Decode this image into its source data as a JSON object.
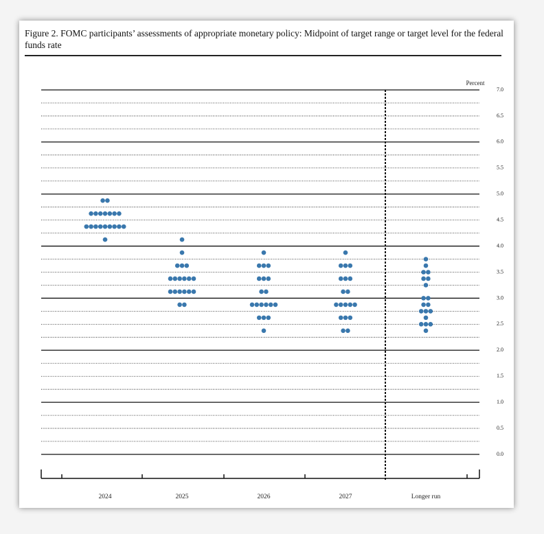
{
  "chart_data": {
    "type": "dot",
    "title": "Figure 2.  FOMC participants’ assessments of appropriate monetary policy: Midpoint of target range or target level for the federal funds rate",
    "y_label": "Percent",
    "color": "#3a78ad",
    "categories": [
      "2024",
      "2025",
      "2026",
      "2027",
      "Longer run"
    ],
    "dots": [
      [
        {
          "value": 4.875,
          "count": 2
        },
        {
          "value": 4.625,
          "count": 7
        },
        {
          "value": 4.375,
          "count": 9
        },
        {
          "value": 4.125,
          "count": 1
        }
      ],
      [
        {
          "value": 4.125,
          "count": 1
        },
        {
          "value": 3.875,
          "count": 1
        },
        {
          "value": 3.625,
          "count": 3
        },
        {
          "value": 3.375,
          "count": 6
        },
        {
          "value": 3.125,
          "count": 6
        },
        {
          "value": 2.875,
          "count": 2
        }
      ],
      [
        {
          "value": 3.875,
          "count": 1
        },
        {
          "value": 3.625,
          "count": 3
        },
        {
          "value": 3.375,
          "count": 3
        },
        {
          "value": 3.125,
          "count": 2
        },
        {
          "value": 2.875,
          "count": 6
        },
        {
          "value": 2.625,
          "count": 3
        },
        {
          "value": 2.375,
          "count": 1
        }
      ],
      [
        {
          "value": 3.875,
          "count": 1
        },
        {
          "value": 3.625,
          "count": 3
        },
        {
          "value": 3.375,
          "count": 3
        },
        {
          "value": 3.125,
          "count": 2
        },
        {
          "value": 2.875,
          "count": 5
        },
        {
          "value": 2.625,
          "count": 3
        },
        {
          "value": 2.375,
          "count": 2
        }
      ],
      [
        {
          "value": 3.75,
          "count": 1
        },
        {
          "value": 3.625,
          "count": 1
        },
        {
          "value": 3.5,
          "count": 2
        },
        {
          "value": 3.375,
          "count": 2
        },
        {
          "value": 3.25,
          "count": 1
        },
        {
          "value": 3.0,
          "count": 2
        },
        {
          "value": 2.875,
          "count": 2
        },
        {
          "value": 2.75,
          "count": 3
        },
        {
          "value": 2.625,
          "count": 1
        },
        {
          "value": 2.5,
          "count": 3
        },
        {
          "value": 2.375,
          "count": 1
        }
      ]
    ],
    "ylim": [
      0,
      7
    ],
    "yticks": [
      {
        "value": 7,
        "label": "7.0"
      },
      {
        "value": 6.5,
        "label": "6.5"
      },
      {
        "value": 6,
        "label": "6.0"
      },
      {
        "value": 5.5,
        "label": "5.5"
      },
      {
        "value": 5,
        "label": "5.0"
      },
      {
        "value": 4.5,
        "label": "4.5"
      },
      {
        "value": 4,
        "label": "4.0"
      },
      {
        "value": 3.5,
        "label": "3.5"
      },
      {
        "value": 3,
        "label": "3.0"
      },
      {
        "value": 2.5,
        "label": "2.5"
      },
      {
        "value": 2,
        "label": "2.0"
      },
      {
        "value": 1.5,
        "label": "1.5"
      },
      {
        "value": 1,
        "label": "1.0"
      },
      {
        "value": 0.5,
        "label": "0.5"
      },
      {
        "value": 0,
        "label": "0.0"
      }
    ],
    "minor_yticks": [
      6.75,
      6.25,
      5.75,
      5.25,
      4.75,
      4.25,
      3.75,
      3.25,
      2.75,
      2.25,
      1.75,
      1.25,
      0.75,
      0.25
    ],
    "grid": true
  }
}
